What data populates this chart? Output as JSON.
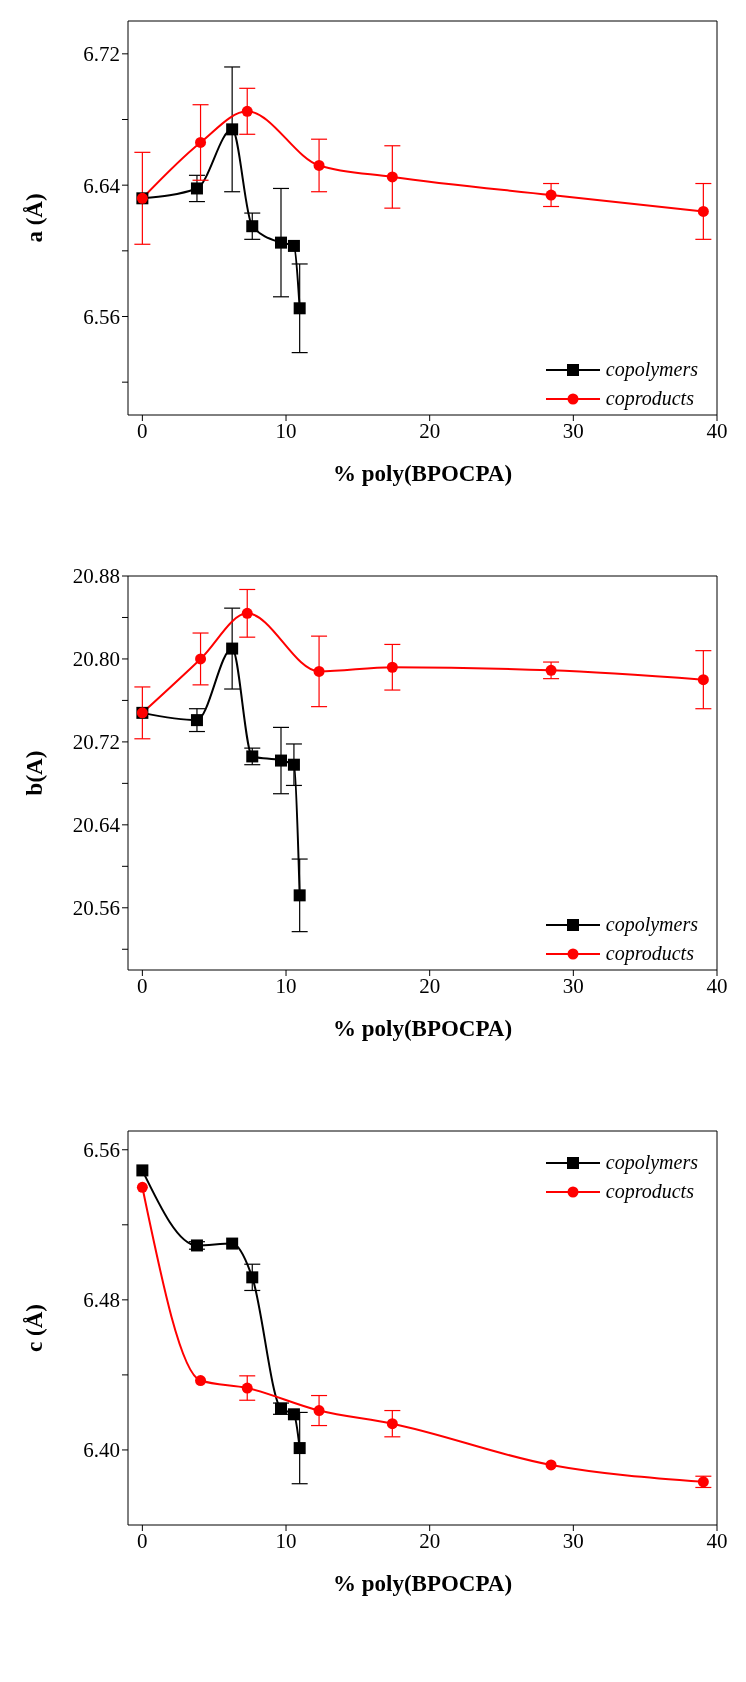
{
  "chart_data": [
    {
      "type": "line",
      "xlabel": "% poly(BPOCPA)",
      "ylabel": "a (Å)",
      "xlim": [
        -1,
        40
      ],
      "xticks": [
        0,
        10,
        20,
        30,
        40
      ],
      "ylim": [
        6.5,
        6.74
      ],
      "yticks": [
        {
          "value": 6.52,
          "label": null
        },
        6.56,
        {
          "value": 6.6,
          "label": null
        },
        6.64,
        {
          "value": 6.68,
          "label": null
        },
        6.72
      ],
      "legend": "bottom right",
      "series": [
        {
          "name": "copolymers",
          "color": "#000000",
          "marker": "square",
          "x": [
            0,
            3.8,
            6.25,
            7.65,
            9.65,
            10.55,
            10.95
          ],
          "values": [
            6.632,
            6.638,
            6.674,
            6.615,
            6.605,
            6.603,
            6.565
          ],
          "errors": [
            null,
            0.008,
            0.038,
            0.008,
            0.033,
            null,
            0.027
          ]
        },
        {
          "name": "coproducts",
          "color": "#ff0000",
          "marker": "circle",
          "x": [
            0,
            4.05,
            7.3,
            12.3,
            17.4,
            28.45,
            39.05
          ],
          "values": [
            6.632,
            6.666,
            6.685,
            6.652,
            6.645,
            6.634,
            6.624
          ],
          "errors": [
            0.028,
            0.023,
            0.014,
            0.016,
            0.019,
            0.007,
            0.017
          ]
        }
      ]
    },
    {
      "type": "line",
      "xlabel": "% poly(BPOCPA)",
      "ylabel": "b(A)",
      "xlim": [
        -1,
        40
      ],
      "xticks": [
        0,
        10,
        20,
        30,
        40
      ],
      "ylim": [
        20.5,
        20.88
      ],
      "yticks": [
        {
          "value": 20.52,
          "label": null
        },
        20.56,
        {
          "value": 20.6,
          "label": null
        },
        20.64,
        {
          "value": 20.68,
          "label": null
        },
        20.72,
        {
          "value": 20.76,
          "label": null
        },
        {
          "value": 20.8,
          "label": "20.80"
        },
        {
          "value": 20.84,
          "label": null
        },
        20.88
      ],
      "legend": "bottom right",
      "series": [
        {
          "name": "copolymers",
          "color": "#000000",
          "marker": "square",
          "x": [
            0,
            3.8,
            6.25,
            7.65,
            9.65,
            10.55,
            10.95
          ],
          "values": [
            20.748,
            20.741,
            20.81,
            20.706,
            20.702,
            20.698,
            20.572
          ],
          "errors": [
            null,
            0.011,
            0.039,
            0.008,
            0.032,
            0.02,
            0.035
          ]
        },
        {
          "name": "coproducts",
          "color": "#ff0000",
          "marker": "circle",
          "x": [
            0,
            4.05,
            7.3,
            12.3,
            17.4,
            28.45,
            39.05
          ],
          "values": [
            20.748,
            20.8,
            20.844,
            20.788,
            20.792,
            20.789,
            20.78
          ],
          "errors": [
            0.025,
            0.025,
            0.023,
            0.034,
            0.022,
            0.008,
            0.028
          ]
        }
      ]
    },
    {
      "type": "line",
      "xlabel": "% poly(BPOCPA)",
      "ylabel": "c (Å)",
      "xlim": [
        -1,
        40
      ],
      "xticks": [
        0,
        10,
        20,
        30,
        40
      ],
      "ylim": [
        6.36,
        6.57
      ],
      "yticks": [
        {
          "value": 6.4,
          "label": "6.40"
        },
        {
          "value": 6.44,
          "label": null
        },
        6.48,
        {
          "value": 6.52,
          "label": null
        },
        6.56
      ],
      "legend": "top right",
      "series": [
        {
          "name": "copolymers",
          "color": "#000000",
          "marker": "square",
          "x": [
            0,
            3.8,
            6.25,
            7.65,
            9.65,
            10.55,
            10.95
          ],
          "values": [
            6.549,
            6.509,
            6.51,
            6.492,
            6.422,
            6.419,
            6.401
          ],
          "errors": [
            null,
            0.002,
            null,
            0.007,
            0.003,
            null,
            0.019
          ]
        },
        {
          "name": "coproducts",
          "color": "#ff0000",
          "marker": "circle",
          "x": [
            0,
            4.05,
            7.3,
            12.3,
            17.4,
            28.45,
            39.05
          ],
          "values": [
            6.54,
            6.437,
            6.433,
            6.421,
            6.414,
            6.392,
            6.383
          ],
          "errors": [
            null,
            null,
            0.0065,
            0.008,
            0.007,
            null,
            0.003
          ]
        }
      ]
    }
  ]
}
